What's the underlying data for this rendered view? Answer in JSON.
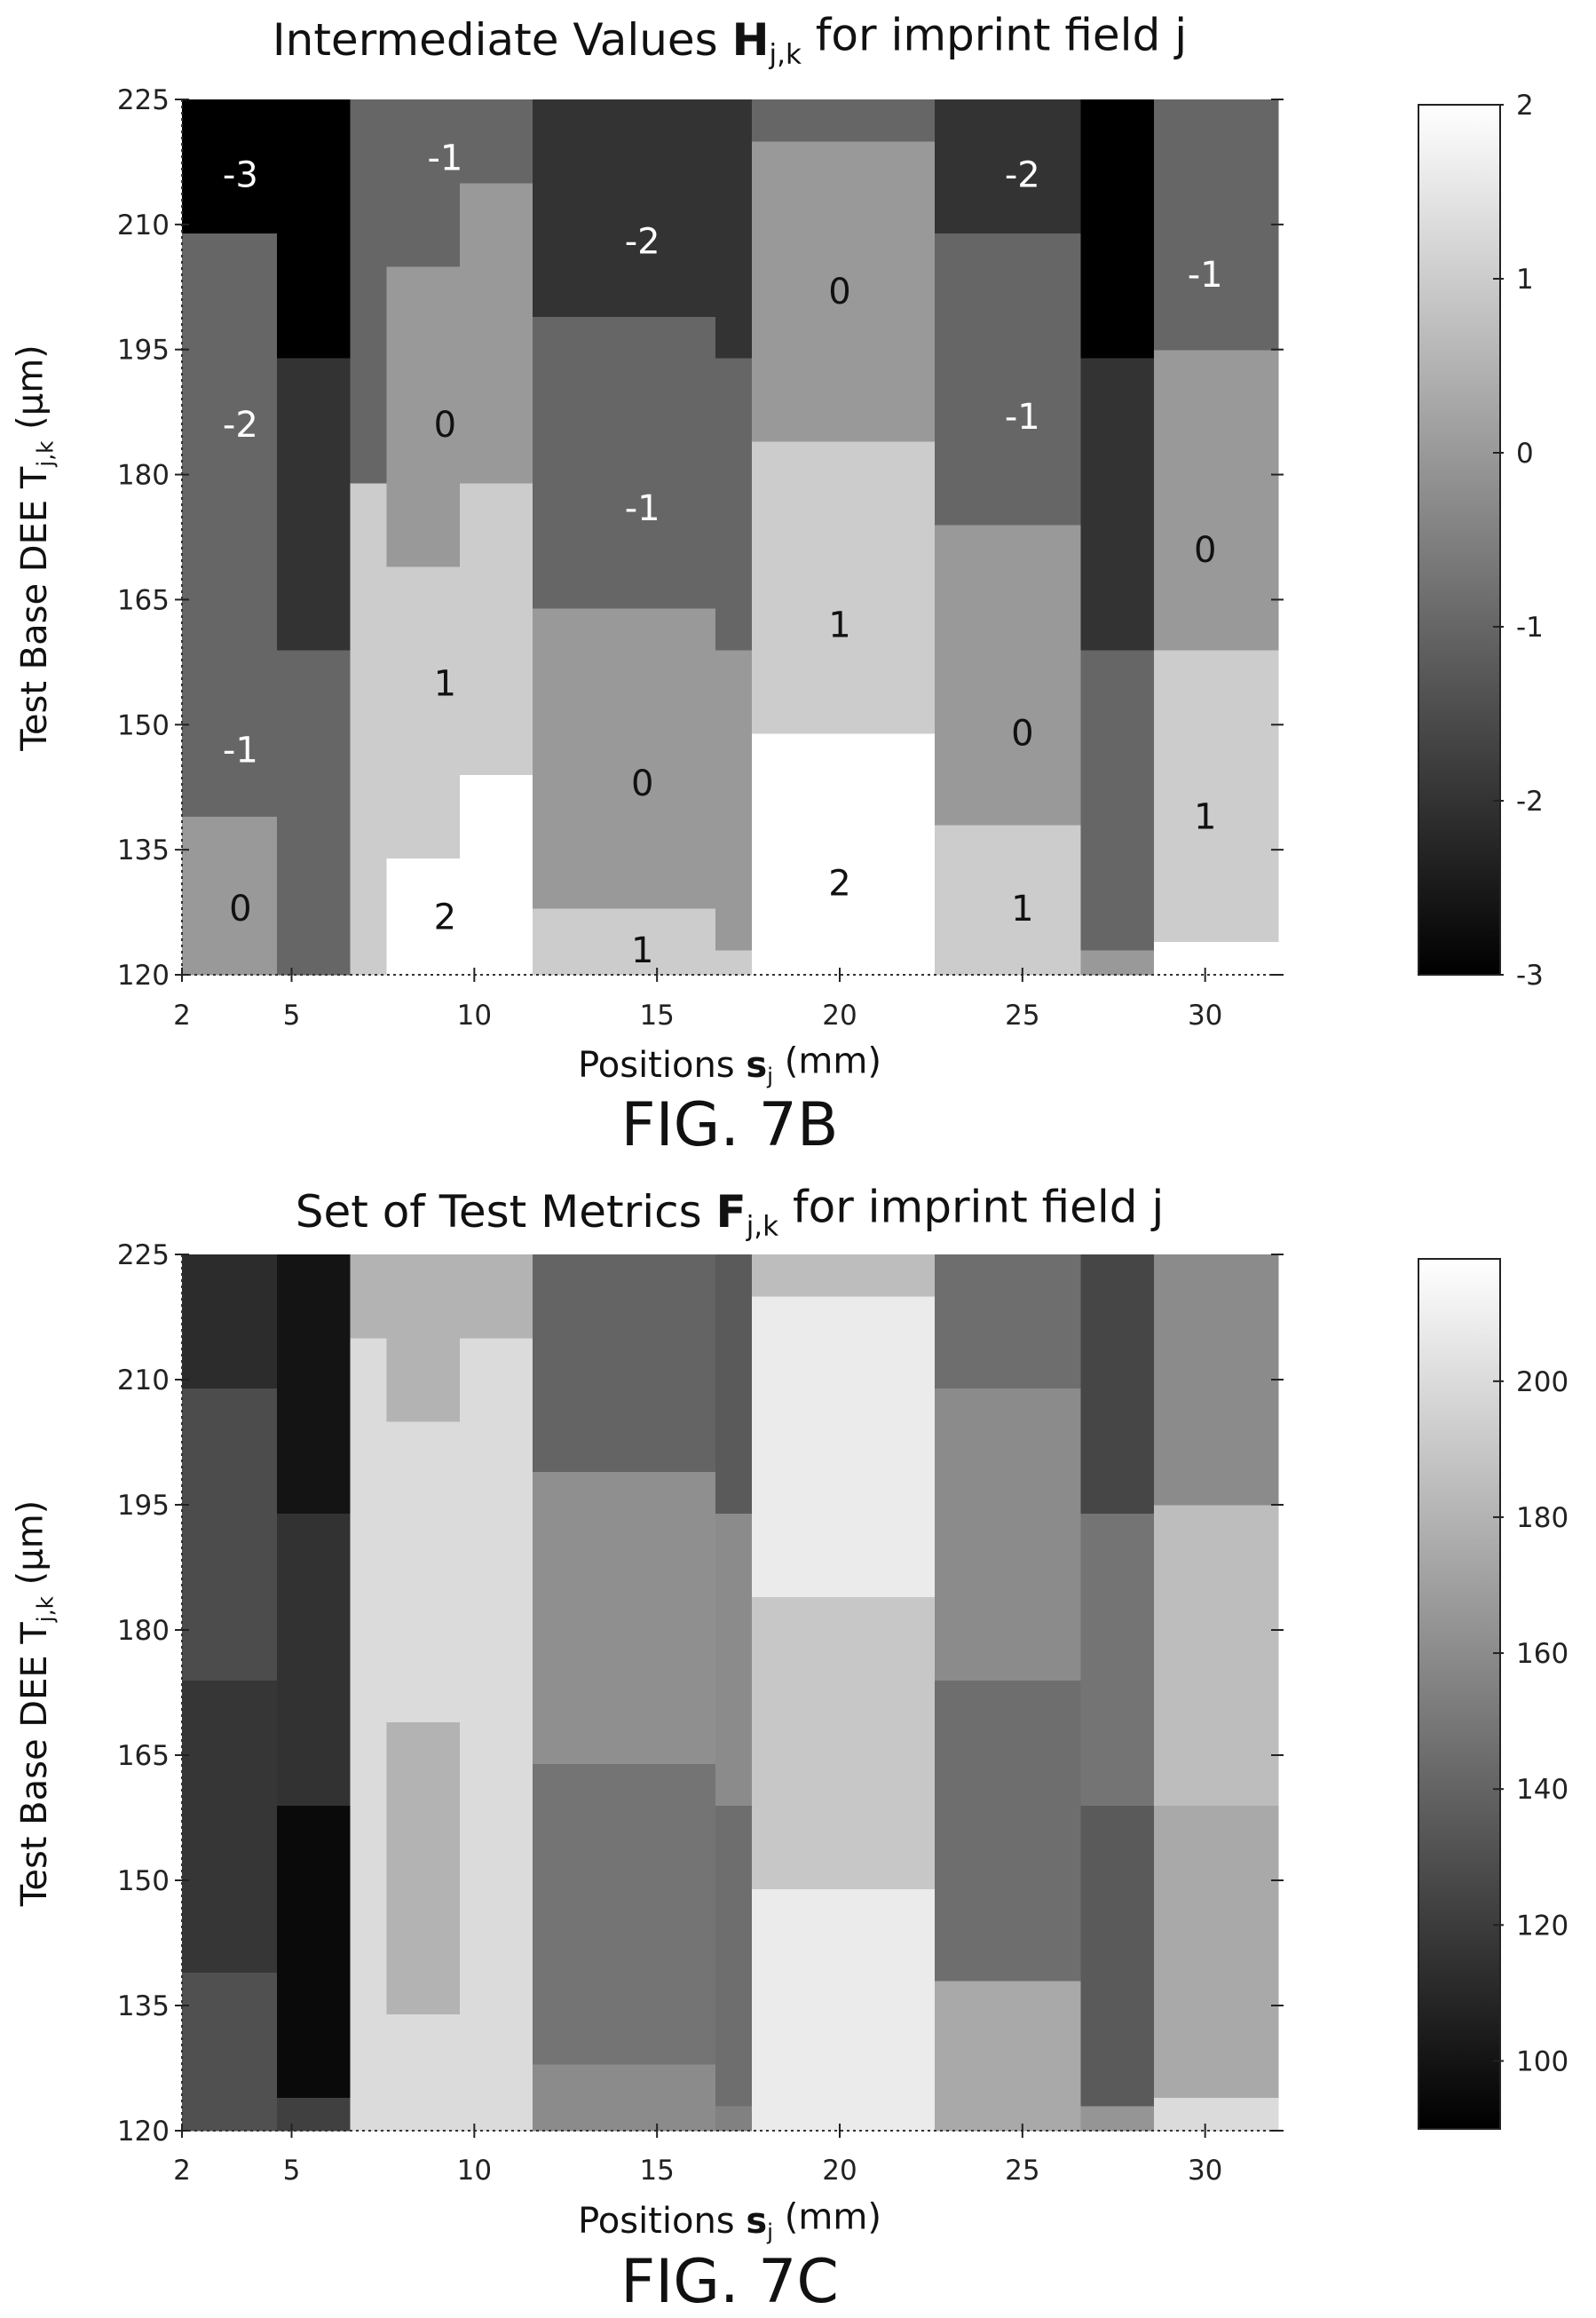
{
  "chart_data": [
    {
      "type": "heatmap",
      "title": "Intermediate Values Hj,k for imprint field j",
      "title_parts": {
        "pre": "Intermediate Values ",
        "bold": "H",
        "sub": "j,k",
        "post": " for imprint field j"
      },
      "xlabel_parts": {
        "pre": "Positions ",
        "bold": "s",
        "sub": "j",
        "post": " (mm)"
      },
      "ylabel_parts": {
        "pre": "Test Base DEE T",
        "sub": "j,k",
        "post": " (µm)"
      },
      "figure_label": "FIG. 7B",
      "x_ticks": [
        "2",
        "5",
        "10",
        "15",
        "20",
        "25",
        "30"
      ],
      "y_ticks": [
        "225",
        "210",
        "195",
        "180",
        "165",
        "150",
        "135",
        "120"
      ],
      "xlim": [
        2,
        32
      ],
      "ylim": [
        120,
        225
      ],
      "colorbar_ticks": [
        "2",
        "1",
        "0",
        "-1",
        "-2",
        "-3"
      ],
      "colorbar_range": [
        -3,
        2
      ],
      "column_edges": [
        2,
        4.6,
        6.6,
        7.6,
        9.6,
        11.6,
        16.6,
        17.6,
        22.6,
        26.6,
        28.6,
        32
      ],
      "columns": [
        [
          [
            120,
            139,
            0
          ],
          [
            139,
            209,
            -1
          ],
          [
            209,
            225,
            -3
          ]
        ],
        [
          [
            120,
            124,
            -1
          ],
          [
            124,
            159,
            -1
          ],
          [
            159,
            194,
            -2
          ],
          [
            194,
            225,
            -3
          ]
        ],
        [
          [
            120,
            144,
            1
          ],
          [
            144,
            179,
            1
          ],
          [
            179,
            225,
            -1
          ]
        ],
        [
          [
            120,
            134,
            2
          ],
          [
            134,
            169,
            1
          ],
          [
            169,
            205,
            0
          ],
          [
            205,
            225,
            -1
          ]
        ],
        [
          [
            120,
            144,
            2
          ],
          [
            144,
            179,
            1
          ],
          [
            179,
            215,
            0
          ],
          [
            215,
            225,
            -1
          ]
        ],
        [
          [
            120,
            128,
            1
          ],
          [
            128,
            164,
            0
          ],
          [
            164,
            199,
            -1
          ],
          [
            199,
            225,
            -2
          ]
        ],
        [
          [
            120,
            123,
            1
          ],
          [
            123,
            159,
            0
          ],
          [
            159,
            194,
            -1
          ],
          [
            194,
            225,
            -2
          ]
        ],
        [
          [
            120,
            149,
            2
          ],
          [
            149,
            184,
            1
          ],
          [
            184,
            220,
            0
          ],
          [
            220,
            225,
            -1
          ]
        ],
        [
          [
            120,
            138,
            1
          ],
          [
            138,
            174,
            0
          ],
          [
            174,
            209,
            -1
          ],
          [
            209,
            225,
            -2
          ]
        ],
        [
          [
            120,
            123,
            0
          ],
          [
            123,
            159,
            -1
          ],
          [
            159,
            194,
            -2
          ],
          [
            194,
            225,
            -3
          ]
        ],
        [
          [
            120,
            124,
            2
          ],
          [
            124,
            159,
            1
          ],
          [
            159,
            195,
            0
          ],
          [
            195,
            225,
            -1
          ]
        ]
      ],
      "labels": [
        {
          "x": 3.6,
          "y": 216,
          "text": "-3"
        },
        {
          "x": 3.6,
          "y": 186,
          "text": "-2"
        },
        {
          "x": 3.6,
          "y": 147,
          "text": "-1"
        },
        {
          "x": 3.6,
          "y": 128,
          "text": "0"
        },
        {
          "x": 9.2,
          "y": 218,
          "text": "-1"
        },
        {
          "x": 9.2,
          "y": 186,
          "text": "0"
        },
        {
          "x": 9.2,
          "y": 155,
          "text": "1"
        },
        {
          "x": 9.2,
          "y": 127,
          "text": "2"
        },
        {
          "x": 14.6,
          "y": 208,
          "text": "-2"
        },
        {
          "x": 14.6,
          "y": 176,
          "text": "-1"
        },
        {
          "x": 14.6,
          "y": 143,
          "text": "0"
        },
        {
          "x": 14.6,
          "y": 123,
          "text": "1"
        },
        {
          "x": 20,
          "y": 202,
          "text": "0"
        },
        {
          "x": 20,
          "y": 162,
          "text": "1"
        },
        {
          "x": 20,
          "y": 131,
          "text": "2"
        },
        {
          "x": 25,
          "y": 216,
          "text": "-2"
        },
        {
          "x": 25,
          "y": 187,
          "text": "-1"
        },
        {
          "x": 25,
          "y": 149,
          "text": "0"
        },
        {
          "x": 25,
          "y": 128,
          "text": "1"
        },
        {
          "x": 30,
          "y": 204,
          "text": "-1"
        },
        {
          "x": 30,
          "y": 171,
          "text": "0"
        },
        {
          "x": 30,
          "y": 139,
          "text": "1"
        }
      ],
      "grid": false,
      "colormap": "gray"
    },
    {
      "type": "heatmap",
      "title": "Set of Test Metrics Fj,k for imprint field j",
      "title_parts": {
        "pre": "Set of Test Metrics ",
        "bold": "F",
        "sub": "j,k",
        "post": " for imprint field j"
      },
      "xlabel_parts": {
        "pre": "Positions ",
        "bold": "s",
        "sub": "j",
        "post": " (mm)"
      },
      "ylabel_parts": {
        "pre": "Test Base DEE T",
        "sub": "j,k",
        "post": " (µm)"
      },
      "figure_label": "FIG. 7C",
      "x_ticks": [
        "2",
        "5",
        "10",
        "15",
        "20",
        "25",
        "30"
      ],
      "y_ticks": [
        "225",
        "210",
        "195",
        "180",
        "165",
        "150",
        "135",
        "120"
      ],
      "xlim": [
        2,
        32
      ],
      "ylim": [
        120,
        225
      ],
      "colorbar_ticks": [
        "200",
        "180",
        "160",
        "140",
        "120",
        "100"
      ],
      "colorbar_range": [
        90,
        218
      ],
      "column_edges": [
        2,
        4.6,
        6.6,
        7.6,
        9.6,
        11.6,
        16.6,
        17.6,
        22.6,
        26.6,
        28.6,
        32
      ],
      "columns": [
        [
          [
            120,
            139,
            130
          ],
          [
            139,
            174,
            117
          ],
          [
            174,
            209,
            128
          ],
          [
            209,
            225,
            112
          ]
        ],
        [
          [
            120,
            124,
            122
          ],
          [
            124,
            159,
            95
          ],
          [
            159,
            194,
            115
          ],
          [
            194,
            225,
            100
          ]
        ],
        [
          [
            120,
            144,
            200
          ],
          [
            144,
            179,
            200
          ],
          [
            179,
            215,
            200
          ],
          [
            215,
            225,
            180
          ]
        ],
        [
          [
            120,
            134,
            200
          ],
          [
            134,
            169,
            180
          ],
          [
            169,
            205,
            200
          ],
          [
            205,
            225,
            180
          ]
        ],
        [
          [
            120,
            144,
            200
          ],
          [
            144,
            179,
            200
          ],
          [
            179,
            215,
            200
          ],
          [
            215,
            225,
            180
          ]
        ],
        [
          [
            120,
            128,
            160
          ],
          [
            128,
            164,
            148
          ],
          [
            164,
            199,
            162
          ],
          [
            199,
            225,
            140
          ]
        ],
        [
          [
            120,
            123,
            155
          ],
          [
            123,
            159,
            145
          ],
          [
            159,
            194,
            160
          ],
          [
            194,
            225,
            135
          ]
        ],
        [
          [
            120,
            149,
            208
          ],
          [
            149,
            184,
            190
          ],
          [
            184,
            220,
            208
          ],
          [
            220,
            225,
            185
          ]
        ],
        [
          [
            120,
            138,
            175
          ],
          [
            138,
            174,
            145
          ],
          [
            174,
            209,
            160
          ],
          [
            209,
            225,
            145
          ]
        ],
        [
          [
            120,
            123,
            165
          ],
          [
            123,
            159,
            135
          ],
          [
            159,
            194,
            148
          ],
          [
            194,
            225,
            125
          ]
        ],
        [
          [
            120,
            124,
            200
          ],
          [
            124,
            159,
            175
          ],
          [
            159,
            195,
            185
          ],
          [
            195,
            225,
            160
          ]
        ]
      ],
      "labels": [],
      "grid": false,
      "colormap": "gray"
    }
  ]
}
